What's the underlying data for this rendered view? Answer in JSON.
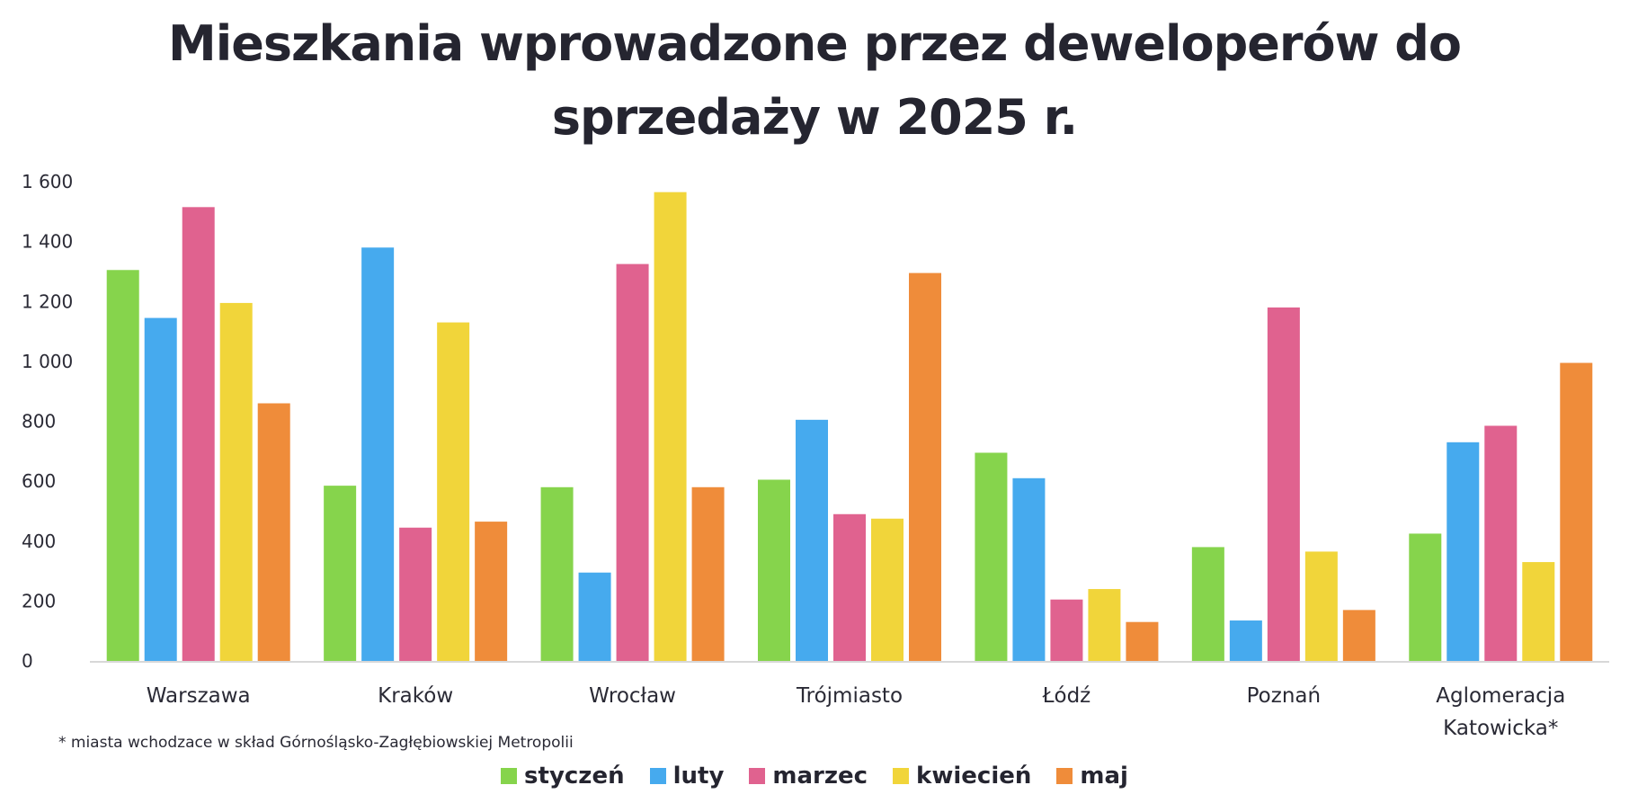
{
  "chart_data": {
    "type": "bar",
    "title_lines": [
      "Mieszkania wprowadzone przez deweloperów do",
      "sprzedaży w 2025 r."
    ],
    "categories": [
      [
        "Warszawa"
      ],
      [
        "Kraków"
      ],
      [
        "Wrocław"
      ],
      [
        "Trójmiasto"
      ],
      [
        "Łódź"
      ],
      [
        "Poznań"
      ],
      [
        "Aglomeracja",
        "Katowicka*"
      ]
    ],
    "series": [
      {
        "name": "styczeń",
        "color": "#86d44c",
        "values": [
          1305,
          585,
          580,
          605,
          695,
          380,
          425
        ]
      },
      {
        "name": "luty",
        "color": "#46aaee",
        "values": [
          1145,
          1380,
          295,
          805,
          610,
          135,
          730
        ]
      },
      {
        "name": "marzec",
        "color": "#e0628f",
        "values": [
          1515,
          445,
          1325,
          490,
          205,
          1180,
          785
        ]
      },
      {
        "name": "kwiecień",
        "color": "#f1d53a",
        "values": [
          1195,
          1130,
          1565,
          475,
          240,
          365,
          330
        ]
      },
      {
        "name": "maj",
        "color": "#ef8c3a",
        "values": [
          860,
          465,
          580,
          1295,
          130,
          170,
          995
        ]
      }
    ],
    "yticks": [
      {
        "value": 0,
        "label": "0"
      },
      {
        "value": 200,
        "label": "200"
      },
      {
        "value": 400,
        "label": "400"
      },
      {
        "value": 600,
        "label": "600"
      },
      {
        "value": 800,
        "label": "800"
      },
      {
        "value": 1000,
        "label": "1 000"
      },
      {
        "value": 1200,
        "label": "1 200"
      },
      {
        "value": 1400,
        "label": "1 400"
      },
      {
        "value": 1600,
        "label": "1 600"
      }
    ],
    "ylim": [
      0,
      1600
    ],
    "xlabel": "",
    "ylabel": "",
    "grid": false,
    "legend_position": "bottom-center"
  },
  "footnote": "* miasta wchodzace w skład Górnośląsko-Zagłębiowskiej Metropolii"
}
